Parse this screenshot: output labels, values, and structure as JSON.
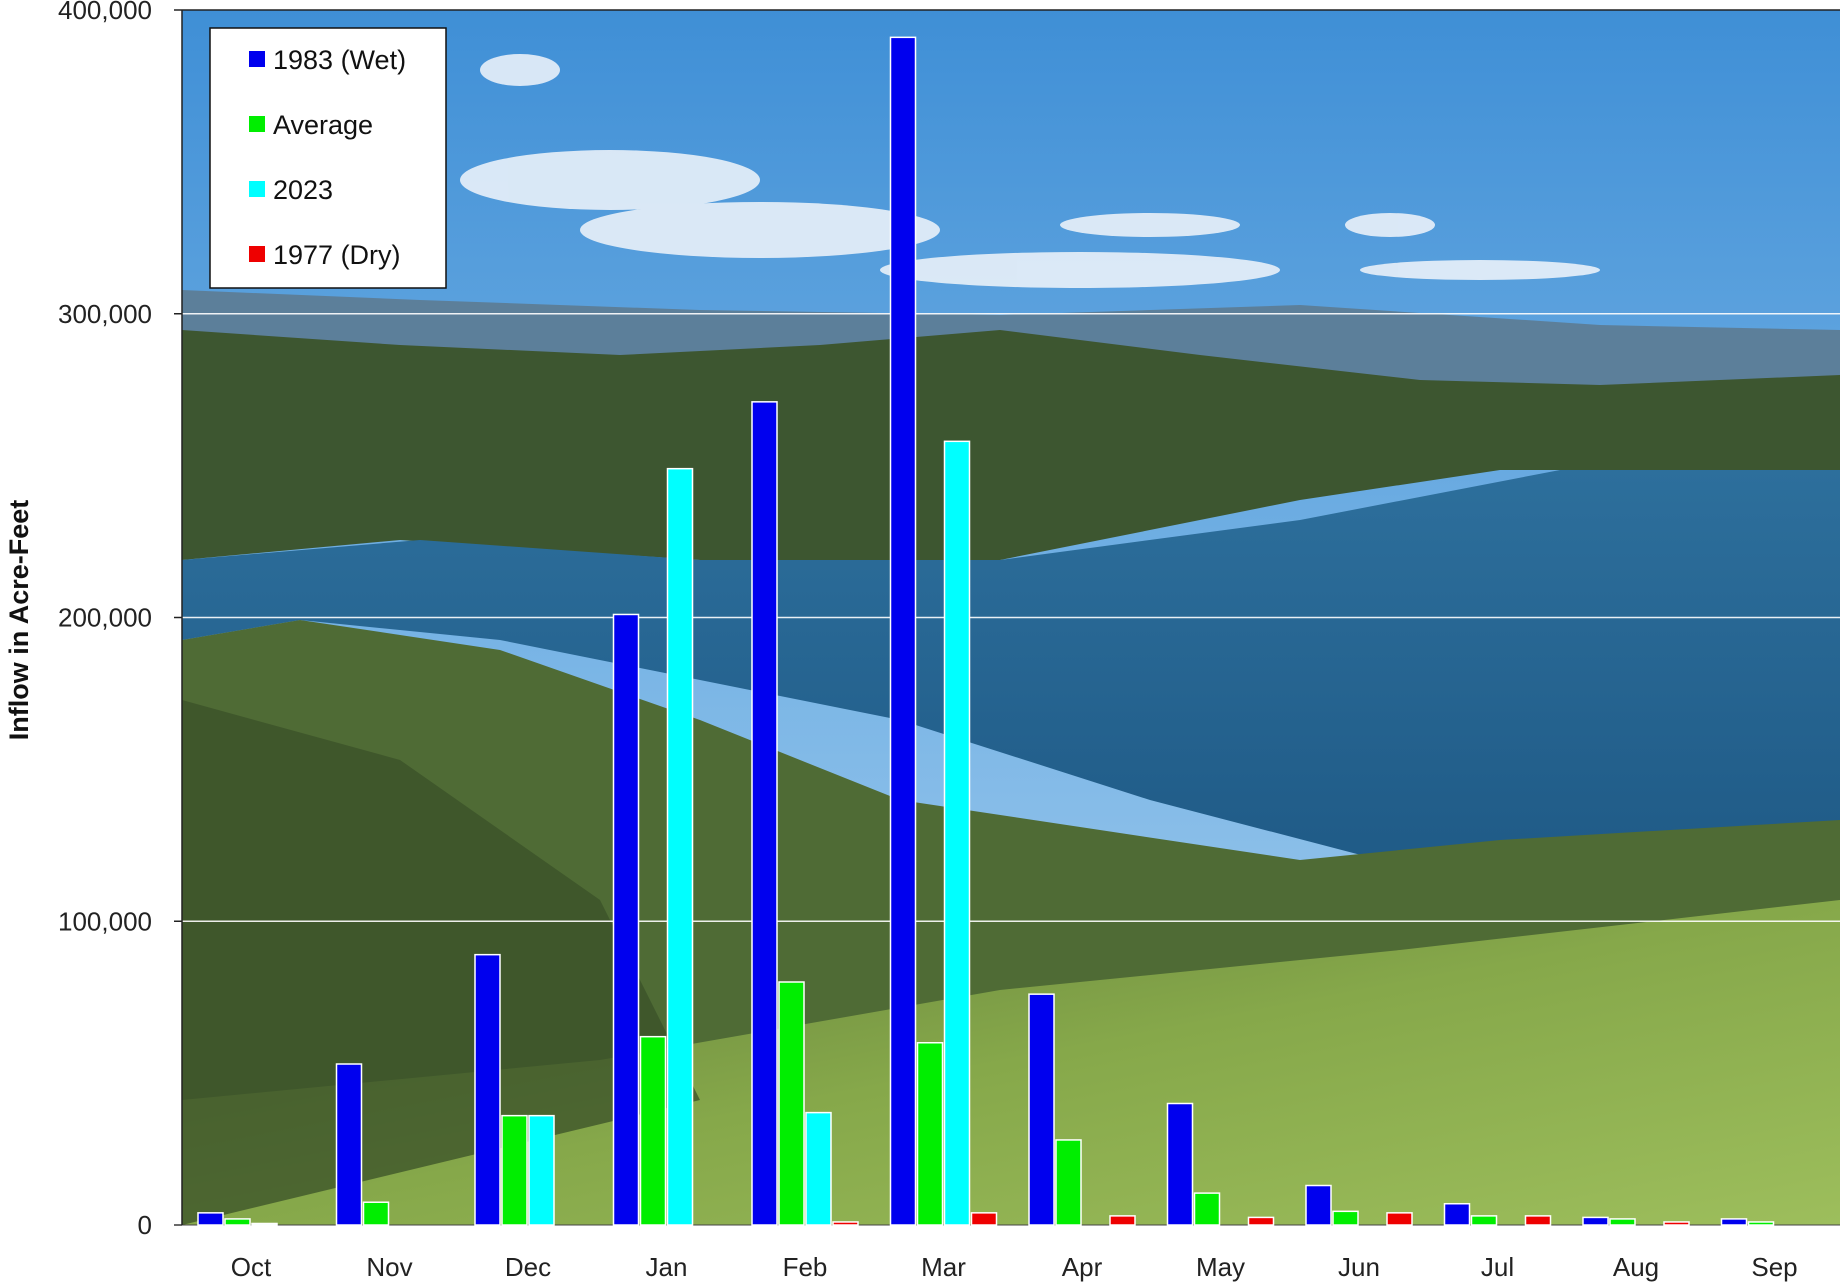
{
  "chart_data": {
    "type": "bar",
    "title": "",
    "xlabel": "",
    "ylabel": "Inflow in Acre-Feet",
    "ylim": [
      0,
      400000
    ],
    "yticks": [
      "0",
      "100,000",
      "200,000",
      "300,000",
      "400,000"
    ],
    "ytick_values": [
      0,
      100000,
      200000,
      300000,
      400000
    ],
    "grid": true,
    "legend_position": "top-left",
    "background": "photo of a reservoir lake with hills (Lake Berryessa)",
    "categories": [
      "Oct",
      "Nov",
      "Dec",
      "Jan",
      "Feb",
      "Mar",
      "Apr",
      "May",
      "Jun",
      "Jul",
      "Aug",
      "Sep"
    ],
    "series": [
      {
        "name": "1983 (Wet)",
        "color": "#0000ee",
        "values": [
          4000,
          53000,
          89000,
          201000,
          271000,
          391000,
          76000,
          40000,
          13000,
          7000,
          2500,
          2000
        ]
      },
      {
        "name": "Average",
        "color": "#00ee00",
        "values": [
          2000,
          7500,
          36000,
          62000,
          80000,
          60000,
          28000,
          10500,
          4500,
          3000,
          2000,
          1000
        ]
      },
      {
        "name": "2023",
        "color": "#00ffff",
        "values": [
          500,
          0,
          36000,
          249000,
          37000,
          258000,
          0,
          0,
          0,
          0,
          0,
          0
        ]
      },
      {
        "name": "1977 (Dry)",
        "color": "#ee0000",
        "values": [
          0,
          0,
          0,
          0,
          1000,
          4000,
          3000,
          2500,
          4000,
          3000,
          1000,
          0
        ]
      }
    ]
  }
}
